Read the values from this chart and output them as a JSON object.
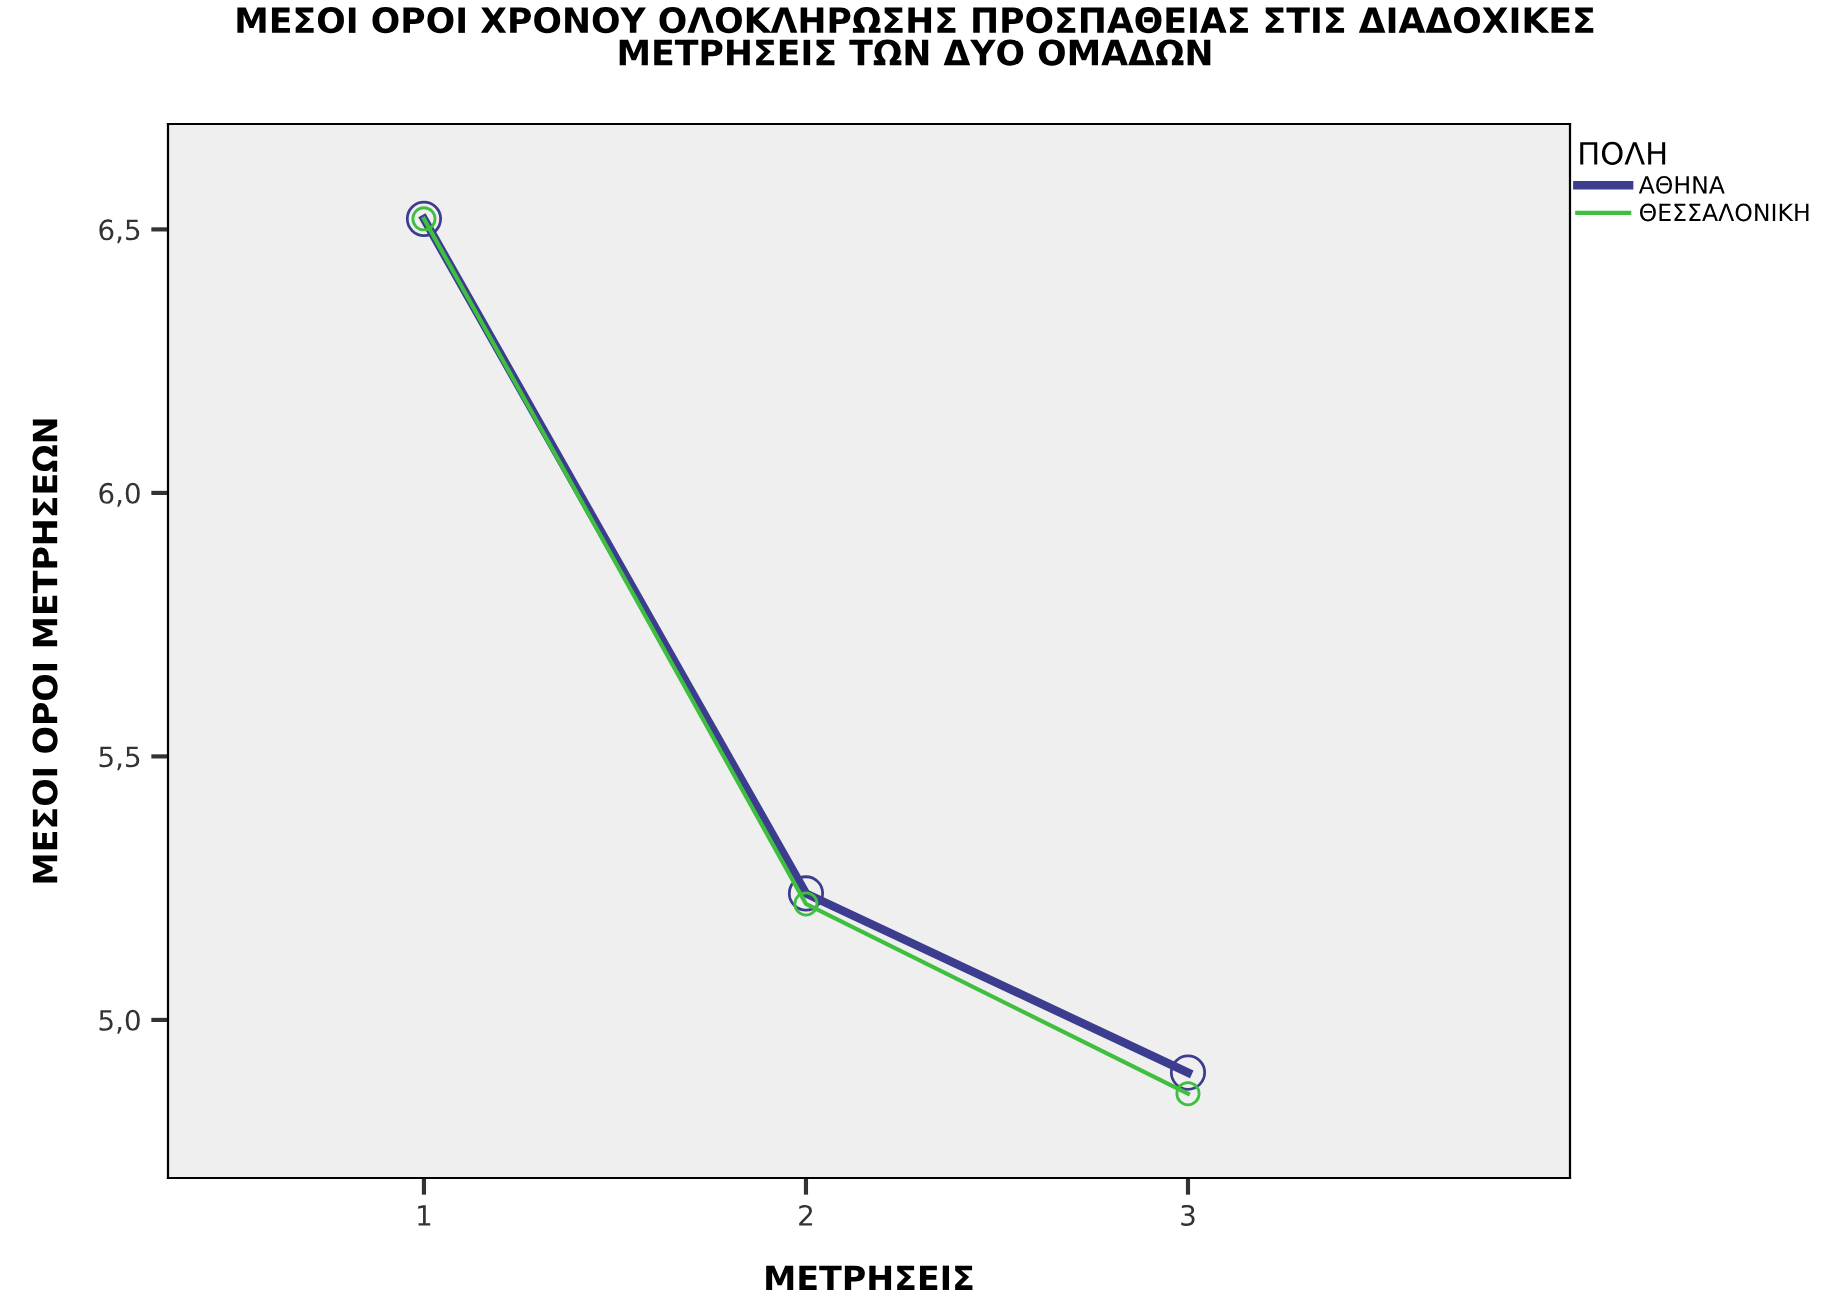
{
  "chart_data": {
    "type": "line",
    "title": "ΜΕΣΟΙ ΟΡΟΙ ΧΡΟΝΟΥ ΟΛΟΚΛΗΡΩΣΗΣ ΠΡΟΣΠΑΘΕΙΑΣ ΣΤΙΣ ΔΙΑΔΟΧΙΚΕΣ\nΜΕΤΡΗΣΕΙΣ ΤΩΝ ΔΥΟ ΟΜΑΔΩΝ",
    "xlabel": "ΜΕΤΡΗΣΕΙΣ",
    "ylabel": "ΜΕΣΟΙ ΟΡΟΙ ΜΕΤΡΗΣΕΩΝ",
    "legend_title": "ΠΟΛΗ",
    "x": [
      1,
      2,
      3
    ],
    "series": [
      {
        "name": "ΑΘΗΝΑ",
        "color": "#3d3d8f",
        "values": [
          6.52,
          5.24,
          4.9
        ]
      },
      {
        "name": "ΘΕΣΣΑΛΟΝΙΚΗ",
        "color": "#3fbf3f",
        "values": [
          6.52,
          5.22,
          4.86
        ]
      }
    ],
    "xlim": [
      0.33,
      4.0
    ],
    "xticks": [
      1,
      2,
      3
    ],
    "ylim": [
      4.7,
      6.7
    ],
    "yticks": [
      {
        "value": 5.0,
        "label": "5,0"
      },
      {
        "value": 5.5,
        "label": "5,5"
      },
      {
        "value": 6.0,
        "label": "6,0"
      },
      {
        "value": 6.5,
        "label": "6,5"
      }
    ],
    "marker": "circle",
    "line_style": "solid",
    "grid": false,
    "legend": "top right"
  }
}
